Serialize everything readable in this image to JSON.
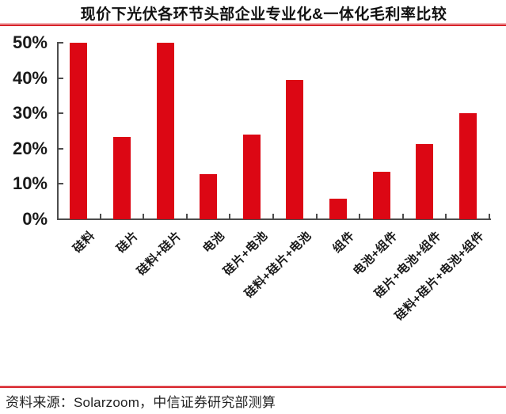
{
  "figure": {
    "title": "现价下光伏各环节头部企业专业化&一体化毛利率比较",
    "source": "资料来源：Solarzoom，中信证券研究部测算",
    "colors": {
      "bar": "#dc0714",
      "rule": "#d8232a",
      "axis": "#4d4d4d",
      "text": "#1a1a1a"
    }
  },
  "chart_data": {
    "type": "bar",
    "title": "现价下光伏各环节头部企业专业化&一体化毛利率比较",
    "categories": [
      "硅料",
      "硅片",
      "硅料+硅片",
      "电池",
      "硅片+电池",
      "硅料+硅片+电池",
      "组件",
      "电池+组件",
      "硅片+电池+组件",
      "硅料+硅片+电池+组件"
    ],
    "values": [
      50,
      23.4,
      50,
      12.7,
      23.9,
      39.4,
      5.9,
      13.5,
      21.2,
      30
    ],
    "unit": "%",
    "xlabel": "",
    "ylabel": "",
    "ylim": [
      0,
      50
    ],
    "yticks": [
      "0%",
      "10%",
      "20%",
      "30%",
      "40%",
      "50%"
    ],
    "grid": false,
    "legend_position": "none",
    "bar_color": "#dc0714",
    "source_note": "资料来源：Solarzoom，中信证券研究部测算"
  }
}
